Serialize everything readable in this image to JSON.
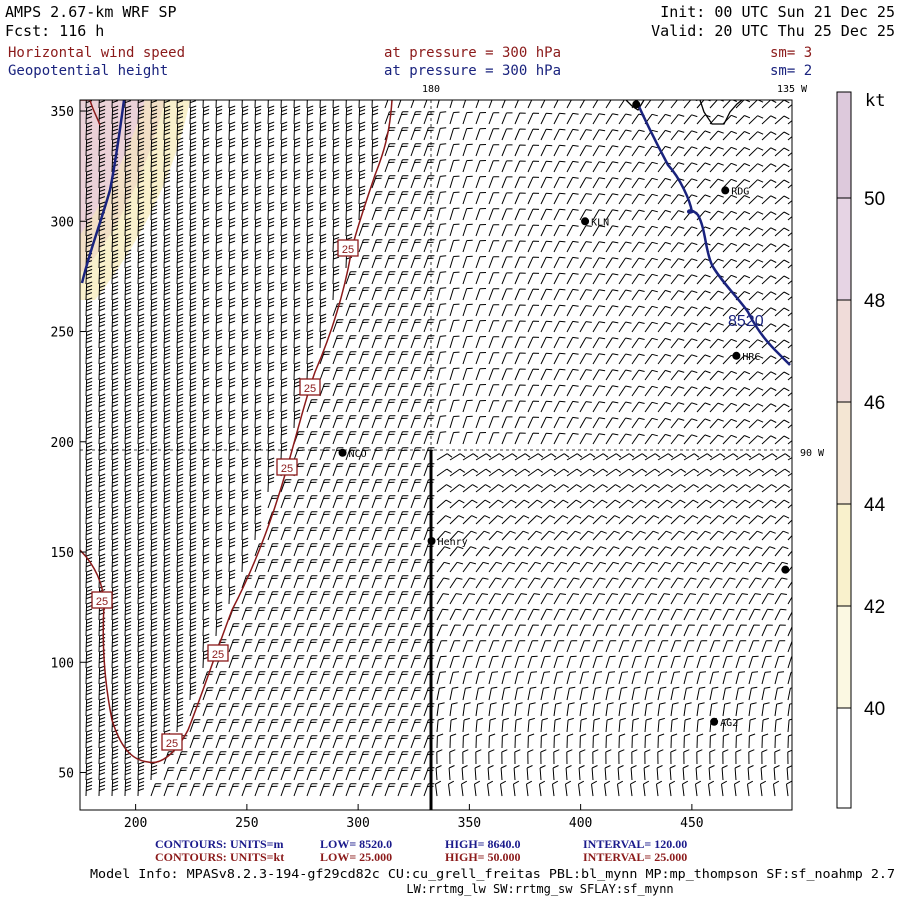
{
  "header": {
    "title_line1": "AMPS 2.67-km WRF SP",
    "forecast_line": "Fcst:  116 h",
    "init_line": "Init: 00 UTC Sun 21 Dec 25",
    "valid_line": "Valid: 20 UTC Thu 25 Dec 25",
    "field1": {
      "name": "Horizontal wind speed",
      "level": "at pressure =  300 hPa",
      "smooth": "sm= 3"
    },
    "field2": {
      "name": "Geopotential height",
      "level": "at pressure =  300 hPa",
      "smooth": "sm= 2"
    }
  },
  "map": {
    "x_ticks": [
      200,
      250,
      300,
      350,
      400,
      450
    ],
    "y_ticks": [
      50,
      100,
      150,
      200,
      250,
      300,
      350
    ],
    "x_range": [
      175,
      495
    ],
    "y_range": [
      33,
      355
    ],
    "graticule_labels": {
      "top_180": "180",
      "top_135w": "135 W",
      "right_90w": "90 W"
    },
    "stations": [
      {
        "label": "RDG",
        "x": 465,
        "y": 314
      },
      {
        "label": "KLN",
        "x": 402,
        "y": 300
      },
      {
        "label": "HRC",
        "x": 470,
        "y": 239
      },
      {
        "label": "NCO",
        "x": 293,
        "y": 195
      },
      {
        "label": "Henry",
        "x": 333,
        "y": 155
      },
      {
        "label": "AG2",
        "x": 460,
        "y": 73
      },
      {
        "label": "",
        "x": 425,
        "y": 353
      },
      {
        "label": "",
        "x": 492,
        "y": 142
      }
    ],
    "height_contour_label": "8520",
    "speed_contour_label": "25",
    "colors": {
      "speed_contour": "#8b1a1a",
      "height_contour": "#1a237e",
      "barbs": "#000000",
      "shade_46": "#f2dfc6",
      "shade_48": "#ebd1d8"
    }
  },
  "colorbar": {
    "unit": "kt",
    "levels": [
      "40",
      "42",
      "44",
      "46",
      "48",
      "50"
    ],
    "colors": [
      "#ffffff",
      "#fbf8e2",
      "#f9f1cc",
      "#f4e6d3",
      "#f0dcd9",
      "#e6d4e4",
      "#ddc9dc"
    ]
  },
  "footer": {
    "contours_label": "CONTOURS:",
    "line1": {
      "units": "UNITS=m",
      "low": "LOW=   8520.0",
      "high": "HIGH=   8640.0",
      "interval": "INTERVAL=    120.00"
    },
    "line2": {
      "units": "UNITS=kt",
      "low": "LOW=   25.000",
      "high": "HIGH=  50.000",
      "interval": "INTERVAL=    25.000"
    },
    "model_info1": "Model Info: MPASv8.2.3-194-gf29cd82c CU:cu_grell_freitas PBL:bl_mynn MP:mp_thompson SF:sf_noahmp 2.7",
    "model_info2": "LW:rrtmg_lw SW:rrtmg_sw SFLAY:sf_mynn"
  }
}
